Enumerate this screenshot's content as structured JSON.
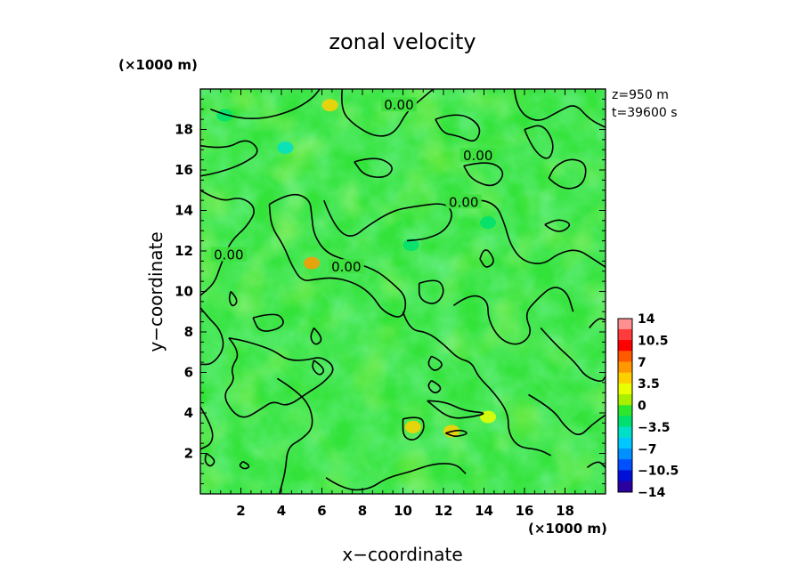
{
  "chart_data": {
    "type": "heatmap",
    "title": "zonal velocity",
    "xlabel": "x−coordinate",
    "ylabel": "y−coordinate",
    "x_unit": "(×1000 m)",
    "y_unit": "(×1000 m)",
    "info": [
      "z=950 m",
      "t=39600 s"
    ],
    "xlim": [
      0,
      20
    ],
    "ylim": [
      0,
      20
    ],
    "x_ticks": [
      "2",
      "4",
      "6",
      "8",
      "10",
      "12",
      "14",
      "16",
      "18"
    ],
    "x_tick_values": [
      2,
      4,
      6,
      8,
      10,
      12,
      14,
      16,
      18
    ],
    "y_ticks": [
      "2",
      "4",
      "6",
      "8",
      "10",
      "12",
      "14",
      "16",
      "18"
    ],
    "y_tick_values": [
      2,
      4,
      6,
      8,
      10,
      12,
      14,
      16,
      18
    ],
    "colorbar": {
      "labels": [
        "14",
        "10.5",
        "7",
        "3.5",
        "0",
        "−3.5",
        "−7",
        "−10.5",
        "−14"
      ],
      "label_values": [
        14,
        10.5,
        7,
        3.5,
        0,
        -3.5,
        -7,
        -10.5,
        -14
      ],
      "levels": [
        14,
        12.25,
        10.5,
        8.75,
        7,
        5.25,
        3.5,
        1.75,
        0,
        -1.75,
        -3.5,
        -5.25,
        -7,
        -8.75,
        -10.5,
        -12.25,
        -14
      ],
      "colors": [
        "#ff9090",
        "#ff3b3b",
        "#ff0000",
        "#ff5a00",
        "#ff9800",
        "#ffd000",
        "#eaff00",
        "#a8f000",
        "#2ee62e",
        "#00e070",
        "#00e0c8",
        "#00c8ff",
        "#0090ff",
        "#0050ff",
        "#0010d8",
        "#2a00a0"
      ]
    },
    "contour_labels": [
      "0.00",
      "0.00",
      "0.00",
      "0.00",
      "0.00"
    ],
    "contour_label_positions": [
      [
        9.8,
        19.2
      ],
      [
        13.7,
        16.7
      ],
      [
        13.0,
        14.4
      ],
      [
        1.4,
        11.8
      ],
      [
        7.2,
        11.2
      ]
    ],
    "field_description_hidden": false,
    "approx_maxima": [
      [
        6.4,
        19.2,
        4.5
      ],
      [
        10.5,
        3.3,
        4.5
      ],
      [
        12.4,
        3.1,
        3.5
      ],
      [
        14.2,
        3.8,
        3.0
      ],
      [
        5.5,
        11.4,
        6.0
      ]
    ],
    "approx_minima": [
      [
        4.2,
        17.1,
        -5.0
      ],
      [
        1.2,
        18.7,
        -3.5
      ],
      [
        10.4,
        12.3,
        -3.0
      ],
      [
        14.2,
        13.4,
        -2.0
      ]
    ],
    "contours": [
      [
        [
          0.5,
          19.0
        ],
        [
          1.5,
          18.6
        ],
        [
          3.0,
          18.5
        ],
        [
          4.5,
          18.9
        ],
        [
          5.5,
          19.5
        ],
        [
          5.9,
          20.0
        ]
      ],
      [
        [
          0.0,
          17.2
        ],
        [
          1.2,
          17.0
        ],
        [
          2.3,
          17.6
        ],
        [
          3.0,
          16.9
        ],
        [
          2.1,
          16.3
        ],
        [
          1.0,
          15.9
        ],
        [
          0.0,
          15.7
        ]
      ],
      [
        [
          0.0,
          15.0
        ],
        [
          1.0,
          14.4
        ],
        [
          2.0,
          14.7
        ],
        [
          2.8,
          14.1
        ],
        [
          2.3,
          13.2
        ],
        [
          1.5,
          12.5
        ],
        [
          1.0,
          11.3
        ],
        [
          0.7,
          10.4
        ],
        [
          0.0,
          9.8
        ]
      ],
      [
        [
          7.0,
          20.0
        ],
        [
          6.9,
          19.0
        ],
        [
          7.6,
          18.2
        ],
        [
          8.7,
          17.6
        ],
        [
          9.6,
          17.8
        ],
        [
          10.2,
          18.9
        ],
        [
          10.9,
          19.5
        ],
        [
          11.5,
          20.0
        ]
      ],
      [
        [
          11.6,
          18.5
        ],
        [
          12.7,
          18.9
        ],
        [
          13.9,
          18.2
        ],
        [
          13.6,
          17.3
        ],
        [
          12.7,
          17.7
        ],
        [
          12.0,
          17.8
        ],
        [
          11.6,
          18.5
        ]
      ],
      [
        [
          15.5,
          20.0
        ],
        [
          15.6,
          19.0
        ],
        [
          16.6,
          18.3
        ],
        [
          17.7,
          18.9
        ],
        [
          18.5,
          19.3
        ],
        [
          19.2,
          18.5
        ],
        [
          20.0,
          18.1
        ]
      ],
      [
        [
          16.0,
          18.0
        ],
        [
          16.4,
          17.0
        ],
        [
          17.2,
          16.4
        ],
        [
          17.5,
          17.3
        ],
        [
          16.9,
          18.3
        ],
        [
          16.0,
          18.0
        ]
      ],
      [
        [
          13.0,
          16.2
        ],
        [
          14.2,
          16.5
        ],
        [
          15.1,
          15.9
        ],
        [
          14.5,
          15.1
        ],
        [
          13.4,
          15.5
        ],
        [
          13.0,
          16.2
        ]
      ],
      [
        [
          17.2,
          15.6
        ],
        [
          17.8,
          15.0
        ],
        [
          18.9,
          15.2
        ],
        [
          19.1,
          16.3
        ],
        [
          18.3,
          16.6
        ],
        [
          17.5,
          16.2
        ],
        [
          17.2,
          15.6
        ]
      ],
      [
        [
          7.6,
          16.4
        ],
        [
          8.6,
          16.7
        ],
        [
          9.6,
          16.2
        ],
        [
          9.2,
          15.6
        ],
        [
          8.1,
          15.7
        ],
        [
          7.6,
          16.4
        ]
      ],
      [
        [
          3.4,
          14.3
        ],
        [
          4.4,
          14.9
        ],
        [
          5.4,
          14.6
        ],
        [
          5.5,
          13.7
        ],
        [
          5.6,
          12.8
        ],
        [
          6.2,
          11.9
        ],
        [
          7.3,
          11.5
        ],
        [
          8.6,
          11.1
        ],
        [
          9.5,
          10.4
        ],
        [
          10.2,
          9.7
        ],
        [
          10.0,
          8.6
        ],
        [
          9.0,
          9.0
        ],
        [
          8.5,
          9.8
        ],
        [
          7.7,
          10.4
        ],
        [
          6.6,
          10.7
        ],
        [
          5.7,
          10.6
        ],
        [
          5.0,
          10.5
        ],
        [
          4.5,
          11.3
        ],
        [
          4.1,
          12.3
        ],
        [
          3.5,
          13.2
        ],
        [
          3.4,
          14.3
        ]
      ],
      [
        [
          6.1,
          14.5
        ],
        [
          6.4,
          13.7
        ],
        [
          7.0,
          12.8
        ],
        [
          7.6,
          12.7
        ],
        [
          8.2,
          13.2
        ],
        [
          9.5,
          14.0
        ],
        [
          10.6,
          14.2
        ],
        [
          12.1,
          14.4
        ],
        [
          12.5,
          13.8
        ],
        [
          12.1,
          13.0
        ],
        [
          11.2,
          12.6
        ],
        [
          10.2,
          12.5
        ]
      ],
      [
        [
          12.2,
          14.3
        ],
        [
          13.6,
          14.6
        ],
        [
          14.6,
          14.3
        ],
        [
          15.0,
          13.4
        ],
        [
          15.3,
          12.3
        ],
        [
          15.9,
          11.5
        ],
        [
          16.9,
          11.3
        ],
        [
          17.7,
          11.9
        ],
        [
          18.6,
          12.1
        ],
        [
          19.4,
          11.6
        ],
        [
          20.0,
          11.2
        ]
      ],
      [
        [
          17.0,
          13.3
        ],
        [
          17.6,
          12.8
        ],
        [
          18.4,
          13.3
        ],
        [
          17.7,
          13.6
        ],
        [
          17.0,
          13.3
        ]
      ],
      [
        [
          10.8,
          10.4
        ],
        [
          11.7,
          10.7
        ],
        [
          12.1,
          10.0
        ],
        [
          11.6,
          9.3
        ],
        [
          10.8,
          9.6
        ],
        [
          10.8,
          10.4
        ]
      ],
      [
        [
          12.5,
          9.3
        ],
        [
          13.3,
          9.9
        ],
        [
          14.2,
          9.6
        ],
        [
          14.2,
          8.6
        ],
        [
          14.8,
          7.6
        ],
        [
          15.7,
          7.3
        ],
        [
          16.4,
          7.9
        ],
        [
          16.0,
          8.9
        ],
        [
          16.6,
          9.6
        ],
        [
          17.4,
          10.3
        ],
        [
          18.1,
          10.0
        ],
        [
          18.4,
          9.0
        ]
      ],
      [
        [
          13.8,
          11.6
        ],
        [
          14.0,
          12.3
        ],
        [
          14.6,
          11.5
        ],
        [
          14.1,
          11.1
        ],
        [
          13.8,
          11.6
        ]
      ],
      [
        [
          0.0,
          9.2
        ],
        [
          0.4,
          8.7
        ],
        [
          1.0,
          8.1
        ],
        [
          1.2,
          7.2
        ],
        [
          0.6,
          6.4
        ],
        [
          0.0,
          6.4
        ]
      ],
      [
        [
          1.5,
          10.0
        ],
        [
          1.9,
          9.6
        ],
        [
          1.6,
          9.2
        ],
        [
          1.4,
          9.6
        ],
        [
          1.5,
          10.0
        ]
      ],
      [
        [
          2.6,
          8.7
        ],
        [
          3.7,
          9.0
        ],
        [
          4.2,
          8.5
        ],
        [
          3.8,
          8.1
        ],
        [
          2.9,
          8.0
        ],
        [
          2.6,
          8.7
        ]
      ],
      [
        [
          1.4,
          7.7
        ],
        [
          2.0,
          7.0
        ],
        [
          1.5,
          6.2
        ],
        [
          1.7,
          5.6
        ],
        [
          1.1,
          4.9
        ],
        [
          1.6,
          4.0
        ],
        [
          2.2,
          3.7
        ],
        [
          3.0,
          4.2
        ],
        [
          3.6,
          4.6
        ],
        [
          4.3,
          4.3
        ],
        [
          5.3,
          5.0
        ],
        [
          6.1,
          5.5
        ],
        [
          6.7,
          6.2
        ],
        [
          6.0,
          6.8
        ],
        [
          5.2,
          6.6
        ],
        [
          4.3,
          6.6
        ],
        [
          3.6,
          7.1
        ],
        [
          2.7,
          7.4
        ],
        [
          2.0,
          7.6
        ],
        [
          1.4,
          7.7
        ]
      ],
      [
        [
          5.6,
          8.2
        ],
        [
          6.1,
          7.7
        ],
        [
          5.7,
          7.3
        ],
        [
          5.4,
          7.7
        ],
        [
          5.6,
          8.2
        ]
      ],
      [
        [
          5.6,
          6.6
        ],
        [
          6.2,
          6.2
        ],
        [
          5.9,
          5.8
        ],
        [
          5.5,
          6.2
        ],
        [
          5.6,
          6.6
        ]
      ],
      [
        [
          0.0,
          4.3
        ],
        [
          0.6,
          3.3
        ],
        [
          0.6,
          2.5
        ],
        [
          0.0,
          2.2
        ]
      ],
      [
        [
          0.3,
          2.0
        ],
        [
          0.8,
          1.7
        ],
        [
          0.5,
          1.3
        ],
        [
          0.2,
          1.6
        ],
        [
          0.3,
          2.0
        ]
      ],
      [
        [
          2.1,
          1.6
        ],
        [
          2.5,
          1.4
        ],
        [
          2.2,
          1.2
        ],
        [
          1.9,
          1.4
        ],
        [
          2.1,
          1.6
        ]
      ],
      [
        [
          3.8,
          5.7
        ],
        [
          4.6,
          5.2
        ],
        [
          5.4,
          4.4
        ],
        [
          5.6,
          3.3
        ],
        [
          5.0,
          2.7
        ],
        [
          4.3,
          2.3
        ],
        [
          4.2,
          1.1
        ],
        [
          3.9,
          0.0
        ]
      ],
      [
        [
          6.2,
          0.8
        ],
        [
          7.1,
          0.2
        ],
        [
          8.3,
          0.2
        ],
        [
          9.2,
          0.8
        ],
        [
          10.4,
          1.1
        ],
        [
          11.5,
          1.5
        ],
        [
          12.6,
          1.5
        ],
        [
          13.1,
          1.0
        ]
      ],
      [
        [
          10.0,
          9.0
        ],
        [
          10.3,
          8.1
        ],
        [
          11.2,
          8.0
        ],
        [
          12.0,
          7.4
        ],
        [
          12.7,
          6.7
        ],
        [
          13.4,
          6.5
        ],
        [
          13.7,
          5.8
        ],
        [
          14.5,
          5.0
        ],
        [
          15.2,
          4.0
        ],
        [
          15.2,
          3.0
        ],
        [
          15.7,
          2.3
        ],
        [
          16.7,
          2.2
        ],
        [
          17.3,
          1.9
        ]
      ],
      [
        [
          11.4,
          6.8
        ],
        [
          12.1,
          6.5
        ],
        [
          11.6,
          6.0
        ],
        [
          11.2,
          6.4
        ],
        [
          11.4,
          6.8
        ]
      ],
      [
        [
          11.4,
          5.6
        ],
        [
          12.0,
          5.3
        ],
        [
          11.6,
          4.9
        ],
        [
          11.2,
          5.3
        ],
        [
          11.4,
          5.6
        ]
      ],
      [
        [
          11.2,
          4.6
        ],
        [
          12.0,
          4.6
        ],
        [
          13.0,
          4.1
        ],
        [
          14.2,
          4.0
        ],
        [
          13.4,
          3.8
        ],
        [
          12.3,
          3.7
        ],
        [
          11.2,
          4.6
        ]
      ],
      [
        [
          10.0,
          3.7
        ],
        [
          10.9,
          3.9
        ],
        [
          11.1,
          3.2
        ],
        [
          10.6,
          2.6
        ],
        [
          10.0,
          2.8
        ],
        [
          10.0,
          3.7
        ]
      ],
      [
        [
          12.1,
          3.0
        ],
        [
          12.7,
          3.2
        ],
        [
          13.3,
          3.0
        ],
        [
          12.6,
          2.8
        ],
        [
          12.1,
          3.0
        ]
      ],
      [
        [
          16.2,
          4.9
        ],
        [
          17.4,
          4.2
        ],
        [
          18.0,
          3.3
        ],
        [
          18.7,
          2.8
        ],
        [
          19.3,
          3.4
        ],
        [
          20.0,
          3.9
        ]
      ],
      [
        [
          16.8,
          8.2
        ],
        [
          17.5,
          7.4
        ],
        [
          18.5,
          6.5
        ],
        [
          19.0,
          5.8
        ],
        [
          19.8,
          5.5
        ],
        [
          20.0,
          5.8
        ]
      ],
      [
        [
          19.2,
          8.2
        ],
        [
          19.6,
          8.7
        ],
        [
          20.0,
          8.6
        ]
      ],
      [
        [
          19.1,
          1.3
        ],
        [
          19.6,
          1.7
        ],
        [
          20.0,
          1.3
        ]
      ]
    ]
  }
}
